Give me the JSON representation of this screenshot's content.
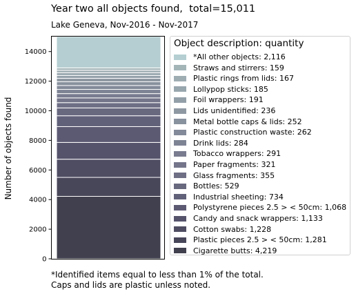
{
  "chart_data": {
    "type": "bar",
    "stacked": true,
    "title": "Year two all objects found,  total=15,011",
    "subtitle": "Lake Geneva, Nov-2016 - Nov-2017",
    "ylabel": "Number of objects found",
    "ylim": [
      0,
      15011
    ],
    "yticks": [
      0,
      2000,
      4000,
      6000,
      8000,
      10000,
      12000,
      14000
    ],
    "grid": false,
    "legend_title": "Object description: quantity",
    "legend_position": "right",
    "series": [
      {
        "name": "Cigarette butts: 4,219",
        "value": 4219,
        "color": "#41404f"
      },
      {
        "name": "Plastic pieces 2.5 > < 50cm: 1,281",
        "value": 1281,
        "color": "#484659"
      },
      {
        "name": "Cotton swabs: 1,228",
        "value": 1228,
        "color": "#4e4d62"
      },
      {
        "name": "Candy and snack wrappers: 1,133",
        "value": 1133,
        "color": "#55536b"
      },
      {
        "name": "Polystyrene pieces 2.5 > < 50cm: 1,068",
        "value": 1068,
        "color": "#5c5a73"
      },
      {
        "name": "Industrial sheeting: 734",
        "value": 734,
        "color": "#62617a"
      },
      {
        "name": "Bottles: 529",
        "value": 529,
        "color": "#68687f"
      },
      {
        "name": "Glass fragments: 355",
        "value": 355,
        "color": "#6e6e85"
      },
      {
        "name": "Paper fragments: 321",
        "value": 321,
        "color": "#74758a"
      },
      {
        "name": "Tobacco wrappers: 291",
        "value": 291,
        "color": "#797c8f"
      },
      {
        "name": "Drink lids: 284",
        "value": 284,
        "color": "#7e8394"
      },
      {
        "name": "Plastic construction waste: 262",
        "value": 262,
        "color": "#838a99"
      },
      {
        "name": "Metal bottle caps & lids: 252",
        "value": 252,
        "color": "#88919e"
      },
      {
        "name": "Lids unidentified: 236",
        "value": 236,
        "color": "#8e98a3"
      },
      {
        "name": "Foil wrappers: 191",
        "value": 191,
        "color": "#939fa8"
      },
      {
        "name": "Lollypop sticks: 185",
        "value": 185,
        "color": "#98a6ad"
      },
      {
        "name": "Plastic rings from lids: 167",
        "value": 167,
        "color": "#9eadb2"
      },
      {
        "name": "Straws and stirrers: 159",
        "value": 159,
        "color": "#a4b5b8"
      },
      {
        "name": "*All other objects: 2,116",
        "value": 2116,
        "color": "#b4ced1"
      }
    ]
  },
  "footnote": {
    "line1": "*Identified items equal to less than 1% of the total.",
    "line2": "Caps and lids are plastic unless noted."
  }
}
